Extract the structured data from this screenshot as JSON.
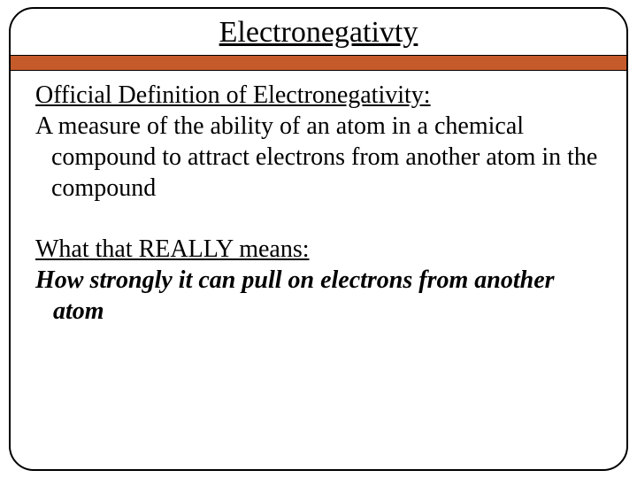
{
  "slide": {
    "title": "Electronegativty",
    "section1_heading": "Official Definition of Electronegativity:",
    "section1_body": "A measure of the ability of an atom in a chemical compound to attract electrons from another atom in the compound",
    "section2_heading": "What that REALLY means:",
    "section2_body": "How strongly it can pull on electrons from another atom"
  },
  "styling": {
    "background_color": "#ffffff",
    "border_color": "#000000",
    "border_radius": 28,
    "divider_color": "#c55a2b",
    "title_fontsize": 34,
    "body_fontsize": 28,
    "text_color": "#000000",
    "font_family": "Georgia, Times New Roman, serif"
  }
}
